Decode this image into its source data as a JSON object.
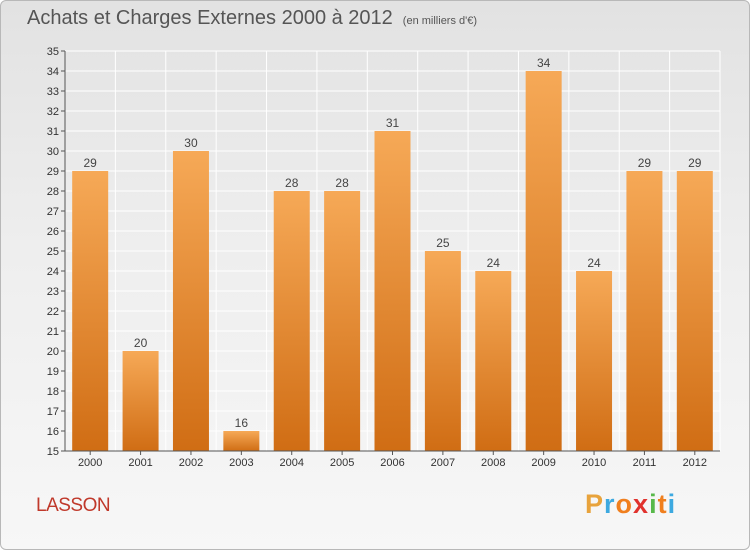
{
  "header": {
    "title": "Achats et Charges Externes 2000 à 2012",
    "subtitle": "(en milliers d'€)"
  },
  "commune": "LASSON",
  "logo": {
    "text": "Proxiti",
    "letters": [
      "P",
      "r",
      "o",
      "x",
      "i",
      "t",
      "i"
    ],
    "colors": [
      "#e8a33c",
      "#3da9e0",
      "#f07f1e",
      "#e1322d",
      "#58b94a",
      "#f07f1e",
      "#3da9e0"
    ]
  },
  "colors": {
    "bar_top": "#f6a957",
    "bar_bottom": "#d06d14",
    "grid": "#ffffff"
  },
  "chart_data": {
    "type": "bar",
    "title": "Achats et Charges Externes 2000 à 2012",
    "subtitle": "(en milliers d'€)",
    "xlabel": "",
    "ylabel": "",
    "categories": [
      "2000",
      "2001",
      "2002",
      "2003",
      "2004",
      "2005",
      "2006",
      "2007",
      "2008",
      "2009",
      "2010",
      "2011",
      "2012"
    ],
    "values": [
      29,
      20,
      30,
      16,
      28,
      28,
      31,
      25,
      24,
      34,
      24,
      29,
      29
    ],
    "ylim": [
      15,
      35
    ],
    "yticks": [
      15,
      16,
      17,
      18,
      19,
      20,
      21,
      22,
      23,
      24,
      25,
      26,
      27,
      28,
      29,
      30,
      31,
      32,
      33,
      34,
      35
    ],
    "grid": true,
    "data_labels": true
  }
}
